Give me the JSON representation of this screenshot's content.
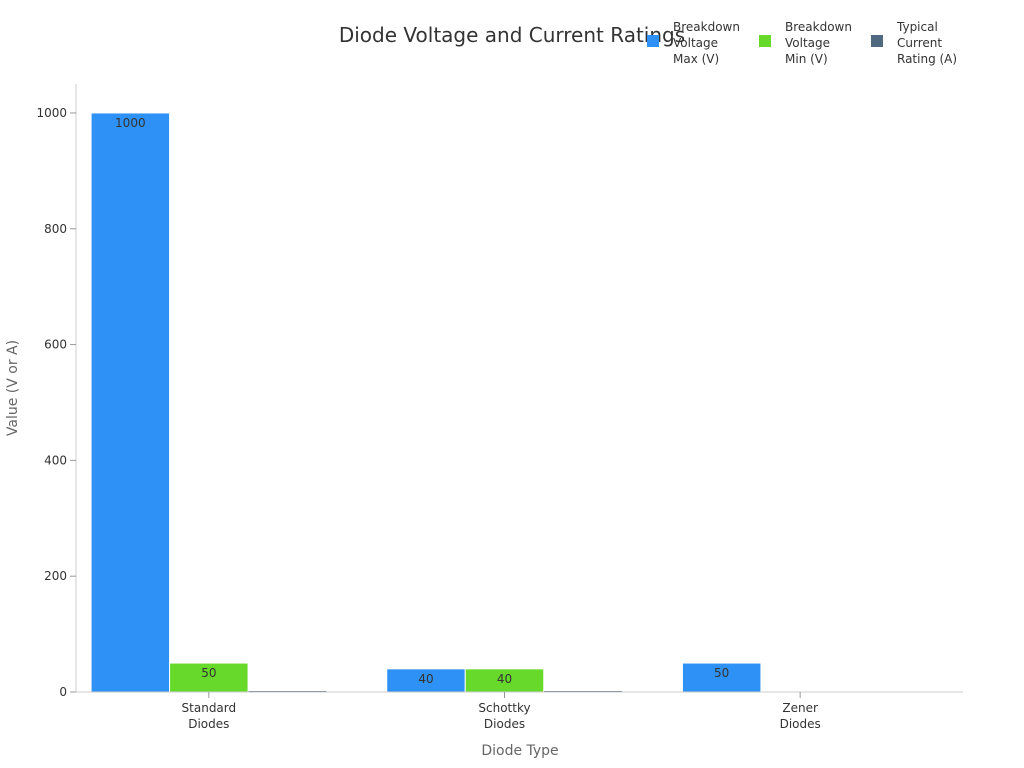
{
  "chart_data": {
    "type": "bar",
    "title": "Diode Voltage and Current Ratings",
    "xlabel": "Diode Type",
    "ylabel": "Value (V or A)",
    "categories": [
      [
        "Standard",
        "Diodes"
      ],
      [
        "Schottky",
        "Diodes"
      ],
      [
        "Zener",
        "Diodes"
      ]
    ],
    "ylim": [
      0,
      1050
    ],
    "yticks": [
      0,
      200,
      400,
      600,
      800,
      1000
    ],
    "grid": false,
    "legend_position": "top-right",
    "series": [
      {
        "name": [
          "Breakdown",
          "Voltage",
          "Max (V)"
        ],
        "color": "#2d91f5",
        "values": [
          1000,
          40,
          50
        ],
        "labels": [
          "1000",
          "40",
          "50"
        ]
      },
      {
        "name": [
          "Breakdown",
          "Voltage",
          "Min (V)"
        ],
        "color": "#66d92b",
        "values": [
          50,
          40,
          0
        ],
        "labels": [
          "50",
          "40",
          ""
        ]
      },
      {
        "name": [
          "Typical",
          "Current",
          "Rating (A)"
        ],
        "color": "#4f6a80",
        "values": [
          1,
          1,
          0
        ],
        "labels": [
          "",
          "",
          ""
        ]
      }
    ]
  }
}
